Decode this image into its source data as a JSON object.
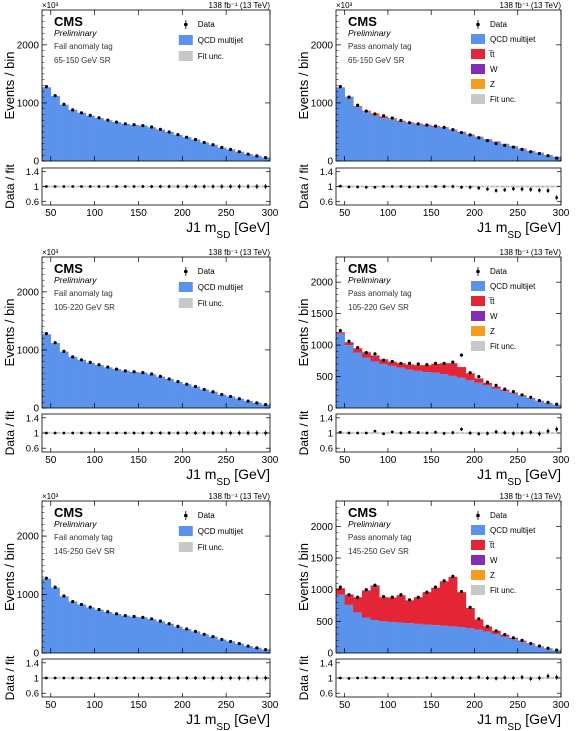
{
  "figure": {
    "lumi_label": "138 fb⁻¹ (13 TeV)",
    "experiment": "CMS",
    "status": "Preliminary",
    "exponent_label": "×10³",
    "ylabel_main": "Events / bin",
    "ylabel_ratio": "Data / fit",
    "xlabel": "J1 m_SD [GeV]",
    "colors": {
      "qcd": "#5b92ec",
      "ttbar": "#e42536",
      "w": "#832db6",
      "z": "#f89c20",
      "unc": "#c8c8c8",
      "data": "#000000"
    }
  },
  "chart_data": [
    {
      "type": "bar",
      "stacked": true,
      "tag": "Fail anomaly tag",
      "region": "65-150 GeV SR",
      "ylim": [
        0,
        2600
      ],
      "yticks": [
        0,
        1000,
        2000
      ],
      "ratio_ylim": [
        0.5,
        1.5
      ],
      "ratio_yticks": [
        0.6,
        1,
        1.4
      ],
      "xlim": [
        40,
        300
      ],
      "xticks": [
        50,
        100,
        150,
        200,
        250,
        300
      ],
      "bin_width": 10,
      "x": [
        45,
        55,
        65,
        75,
        85,
        95,
        105,
        115,
        125,
        135,
        145,
        155,
        165,
        175,
        185,
        195,
        205,
        215,
        225,
        235,
        245,
        255,
        265,
        275,
        285,
        295
      ],
      "legend": [
        "Data",
        "QCD multijet",
        "Fit unc."
      ],
      "series": [
        {
          "name": "QCD multijet",
          "values": [
            1270,
            1120,
            970,
            880,
            830,
            780,
            740,
            700,
            670,
            640,
            620,
            610,
            580,
            540,
            500,
            450,
            410,
            370,
            320,
            280,
            230,
            200,
            160,
            120,
            90,
            60
          ]
        }
      ],
      "data": [
        1280,
        1125,
        975,
        880,
        830,
        785,
        745,
        705,
        670,
        640,
        625,
        610,
        585,
        545,
        500,
        455,
        410,
        370,
        320,
        280,
        232,
        198,
        160,
        118,
        88,
        58
      ],
      "ratio": [
        1.0,
        1.0,
        1.0,
        1.0,
        1.0,
        1.0,
        1.0,
        1.0,
        1.0,
        1.0,
        1.0,
        1.0,
        1.0,
        1.0,
        1.0,
        1.0,
        1.0,
        1.0,
        1.0,
        1.0,
        1.0,
        1.0,
        1.0,
        1.0,
        1.0,
        1.0
      ]
    },
    {
      "type": "bar",
      "stacked": true,
      "tag": "Pass anomaly tag",
      "region": "65-150 GeV SR",
      "ylim": [
        0,
        2600
      ],
      "yticks": [
        0,
        1000,
        2000
      ],
      "ratio_ylim": [
        0.5,
        1.5
      ],
      "ratio_yticks": [
        0.6,
        1,
        1.4
      ],
      "xlim": [
        40,
        300
      ],
      "xticks": [
        50,
        100,
        150,
        200,
        250,
        300
      ],
      "bin_width": 10,
      "x": [
        45,
        55,
        65,
        75,
        85,
        95,
        105,
        115,
        125,
        135,
        145,
        155,
        165,
        175,
        185,
        195,
        205,
        215,
        225,
        235,
        245,
        255,
        265,
        275,
        285,
        295
      ],
      "legend": [
        "Data",
        "QCD multijet",
        "t̅t",
        "W",
        "Z",
        "Fit unc."
      ],
      "series": [
        {
          "name": "QCD multijet",
          "values": [
            1260,
            1100,
            930,
            840,
            780,
            740,
            720,
            680,
            650,
            630,
            610,
            590,
            570,
            530,
            490,
            450,
            410,
            370,
            330,
            290,
            250,
            210,
            170,
            140,
            100,
            70
          ]
        },
        {
          "name": "t̅t",
          "values": [
            5,
            5,
            8,
            10,
            10,
            10,
            10,
            10,
            12,
            12,
            12,
            12,
            10,
            10,
            10,
            8,
            8,
            6,
            6,
            5,
            5,
            4,
            4,
            3,
            3,
            2
          ]
        },
        {
          "name": "W",
          "values": [
            2,
            2,
            5,
            8,
            10,
            8,
            4,
            3,
            2,
            2,
            2,
            2,
            2,
            2,
            2,
            1,
            1,
            1,
            1,
            1,
            1,
            1,
            1,
            1,
            1,
            1
          ]
        },
        {
          "name": "Z",
          "values": [
            2,
            2,
            5,
            12,
            25,
            20,
            8,
            4,
            3,
            3,
            2,
            2,
            2,
            2,
            2,
            1,
            1,
            1,
            1,
            1,
            1,
            1,
            1,
            1,
            1,
            1
          ]
        }
      ],
      "data": [
        1280,
        1100,
        960,
        860,
        810,
        780,
        740,
        700,
        660,
        640,
        620,
        600,
        580,
        540,
        490,
        450,
        400,
        350,
        300,
        270,
        240,
        200,
        160,
        130,
        90,
        50
      ],
      "ratio": [
        1.01,
        0.99,
        0.99,
        0.98,
        0.98,
        1.0,
        1.0,
        1.0,
        0.99,
        0.99,
        1.0,
        1.0,
        1.0,
        1.0,
        0.98,
        0.98,
        0.96,
        0.93,
        0.89,
        0.91,
        0.94,
        0.93,
        0.92,
        0.9,
        0.89,
        0.7
      ]
    },
    {
      "type": "bar",
      "stacked": true,
      "tag": "Fail anomaly tag",
      "region": "105-220 GeV SR",
      "ylim": [
        0,
        2600
      ],
      "yticks": [
        0,
        1000,
        2000
      ],
      "ratio_ylim": [
        0.5,
        1.5
      ],
      "ratio_yticks": [
        0.6,
        1,
        1.4
      ],
      "xlim": [
        40,
        300
      ],
      "xticks": [
        50,
        100,
        150,
        200,
        250,
        300
      ],
      "bin_width": 10,
      "x": [
        45,
        55,
        65,
        75,
        85,
        95,
        105,
        115,
        125,
        135,
        145,
        155,
        165,
        175,
        185,
        195,
        205,
        215,
        225,
        235,
        245,
        255,
        265,
        275,
        285,
        295
      ],
      "legend": [
        "Data",
        "QCD multijet",
        "Fit unc."
      ],
      "series": [
        {
          "name": "QCD multijet",
          "values": [
            1270,
            1120,
            970,
            880,
            830,
            780,
            740,
            700,
            670,
            640,
            620,
            610,
            580,
            540,
            500,
            450,
            410,
            370,
            320,
            280,
            230,
            200,
            160,
            120,
            90,
            60
          ]
        }
      ],
      "data": [
        1280,
        1125,
        975,
        880,
        830,
        785,
        745,
        705,
        670,
        640,
        625,
        610,
        585,
        545,
        500,
        455,
        410,
        370,
        320,
        280,
        232,
        198,
        160,
        118,
        88,
        58
      ],
      "ratio": [
        1.0,
        1.0,
        1.0,
        1.0,
        1.0,
        1.0,
        1.0,
        1.0,
        1.0,
        1.0,
        1.0,
        1.0,
        1.0,
        1.0,
        1.0,
        1.0,
        1.0,
        1.0,
        1.0,
        1.0,
        1.0,
        1.0,
        1.0,
        1.0,
        1.0,
        1.0
      ]
    },
    {
      "type": "bar",
      "stacked": true,
      "tag": "Pass anomaly tag",
      "region": "105-220 GeV SR",
      "ylim": [
        0,
        2400
      ],
      "yticks": [
        0,
        500,
        1000,
        1500,
        2000
      ],
      "ratio_ylim": [
        0.5,
        1.5
      ],
      "ratio_yticks": [
        0.6,
        1,
        1.4
      ],
      "xlim": [
        40,
        300
      ],
      "xticks": [
        50,
        100,
        150,
        200,
        250,
        300
      ],
      "bin_width": 10,
      "x": [
        45,
        55,
        65,
        75,
        85,
        95,
        105,
        115,
        125,
        135,
        145,
        155,
        165,
        175,
        185,
        195,
        205,
        215,
        225,
        235,
        245,
        255,
        265,
        275,
        285,
        295
      ],
      "legend": [
        "Data",
        "QCD multijet",
        "t̅t",
        "W",
        "Z",
        "Fit unc."
      ],
      "series": [
        {
          "name": "QCD multijet",
          "values": [
            1180,
            1000,
            880,
            800,
            740,
            700,
            670,
            640,
            610,
            590,
            570,
            560,
            540,
            510,
            480,
            440,
            400,
            360,
            310,
            270,
            230,
            190,
            150,
            110,
            80,
            50
          ]
        },
        {
          "name": "t̅t",
          "values": [
            20,
            40,
            60,
            70,
            70,
            60,
            60,
            70,
            80,
            90,
            110,
            140,
            170,
            200,
            170,
            110,
            70,
            40,
            30,
            20,
            15,
            10,
            8,
            5,
            3,
            2
          ]
        },
        {
          "name": "W",
          "values": [
            3,
            5,
            10,
            15,
            20,
            10,
            5,
            3,
            2,
            2,
            2,
            2,
            2,
            2,
            2,
            1,
            1,
            1,
            1,
            1,
            1,
            1,
            1,
            1,
            1,
            1
          ]
        },
        {
          "name": "Z",
          "values": [
            2,
            3,
            5,
            10,
            15,
            10,
            5,
            3,
            2,
            2,
            2,
            2,
            2,
            2,
            2,
            1,
            1,
            1,
            1,
            1,
            1,
            1,
            1,
            1,
            1,
            1
          ]
        }
      ],
      "data": [
        1230,
        1060,
        960,
        880,
        860,
        760,
        740,
        710,
        710,
        700,
        690,
        710,
        710,
        730,
        840,
        560,
        500,
        410,
        360,
        300,
        260,
        210,
        170,
        120,
        90,
        60
      ],
      "ratio": [
        1.02,
        1.0,
        1.0,
        1.0,
        1.05,
        0.98,
        1.03,
        1.0,
        1.02,
        1.01,
        1.0,
        1.02,
        0.99,
        1.01,
        1.1,
        1.0,
        0.98,
        0.99,
        1.03,
        1.01,
        0.99,
        1.0,
        1.02,
        0.98,
        1.05,
        1.1
      ]
    },
    {
      "type": "bar",
      "stacked": true,
      "tag": "Fail anomaly tag",
      "region": "145-250 GeV SR",
      "ylim": [
        0,
        2600
      ],
      "yticks": [
        0,
        1000,
        2000
      ],
      "ratio_ylim": [
        0.5,
        1.5
      ],
      "ratio_yticks": [
        0.6,
        1,
        1.4
      ],
      "xlim": [
        40,
        300
      ],
      "xticks": [
        50,
        100,
        150,
        200,
        250,
        300
      ],
      "bin_width": 10,
      "x": [
        45,
        55,
        65,
        75,
        85,
        95,
        105,
        115,
        125,
        135,
        145,
        155,
        165,
        175,
        185,
        195,
        205,
        215,
        225,
        235,
        245,
        255,
        265,
        275,
        285,
        295
      ],
      "legend": [
        "Data",
        "QCD multijet",
        "Fit unc."
      ],
      "series": [
        {
          "name": "QCD multijet",
          "values": [
            1270,
            1120,
            970,
            880,
            830,
            780,
            740,
            700,
            670,
            640,
            620,
            610,
            580,
            540,
            500,
            450,
            410,
            370,
            320,
            280,
            230,
            200,
            160,
            120,
            90,
            60
          ]
        }
      ],
      "data": [
        1280,
        1125,
        975,
        880,
        830,
        785,
        745,
        705,
        670,
        640,
        625,
        610,
        585,
        545,
        500,
        455,
        410,
        370,
        320,
        280,
        232,
        198,
        160,
        118,
        88,
        58
      ],
      "ratio": [
        1.0,
        1.0,
        1.0,
        1.0,
        1.0,
        1.0,
        1.0,
        1.0,
        1.0,
        1.0,
        1.0,
        1.0,
        1.0,
        1.0,
        1.0,
        1.0,
        1.0,
        1.0,
        1.0,
        1.0,
        1.0,
        1.0,
        1.0,
        1.0,
        1.0,
        1.0
      ]
    },
    {
      "type": "bar",
      "stacked": true,
      "tag": "Pass anomaly tag",
      "region": "145-250 GeV SR",
      "ylim": [
        0,
        2400
      ],
      "yticks": [
        0,
        500,
        1000,
        1500,
        2000
      ],
      "ratio_ylim": [
        0.5,
        1.5
      ],
      "ratio_yticks": [
        0.6,
        1,
        1.4
      ],
      "xlim": [
        40,
        300
      ],
      "xticks": [
        50,
        100,
        150,
        200,
        250,
        300
      ],
      "bin_width": 10,
      "x": [
        45,
        55,
        65,
        75,
        85,
        95,
        105,
        115,
        125,
        135,
        145,
        155,
        165,
        175,
        185,
        195,
        205,
        215,
        225,
        235,
        245,
        255,
        265,
        275,
        285,
        295
      ],
      "legend": [
        "Data",
        "QCD multijet",
        "t̅t",
        "W",
        "Z",
        "Fit unc."
      ],
      "series": [
        {
          "name": "QCD multijet",
          "values": [
            920,
            760,
            640,
            560,
            520,
            500,
            490,
            480,
            470,
            460,
            450,
            440,
            430,
            420,
            410,
            390,
            370,
            340,
            300,
            260,
            220,
            180,
            140,
            100,
            70,
            40
          ]
        },
        {
          "name": "t̅t",
          "values": [
            100,
            160,
            230,
            410,
            520,
            370,
            380,
            430,
            360,
            420,
            510,
            590,
            700,
            780,
            550,
            320,
            160,
            80,
            50,
            30,
            20,
            15,
            10,
            6,
            4,
            2
          ]
        },
        {
          "name": "W",
          "values": [
            3,
            5,
            10,
            15,
            20,
            10,
            5,
            3,
            2,
            2,
            2,
            2,
            2,
            2,
            2,
            1,
            1,
            1,
            1,
            1,
            1,
            1,
            1,
            1,
            1,
            1
          ]
        },
        {
          "name": "Z",
          "values": [
            2,
            3,
            5,
            10,
            15,
            10,
            5,
            3,
            2,
            2,
            2,
            2,
            2,
            2,
            2,
            1,
            1,
            1,
            1,
            1,
            1,
            1,
            1,
            1,
            1,
            1
          ]
        }
      ],
      "data": [
        1040,
        920,
        880,
        1000,
        1070,
        890,
        880,
        920,
        840,
        880,
        960,
        1040,
        1140,
        1210,
        970,
        720,
        540,
        420,
        350,
        290,
        240,
        200,
        150,
        110,
        75,
        45
      ],
      "ratio": [
        1.0,
        0.99,
        1.0,
        1.01,
        1.0,
        1.01,
        1.0,
        0.99,
        1.0,
        1.0,
        1.01,
        1.0,
        1.0,
        1.01,
        1.0,
        1.0,
        1.02,
        1.0,
        0.99,
        1.01,
        1.0,
        1.02,
        0.98,
        1.0,
        1.05,
        1.02
      ]
    }
  ]
}
